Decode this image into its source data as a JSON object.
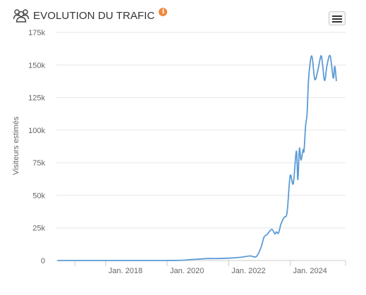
{
  "header": {
    "title": "EVOLUTION DU TRAFIC",
    "title_icon": "users-icon",
    "info_icon": "info-icon",
    "info_symbol": "i",
    "info_color": "#f0883e"
  },
  "menu": {
    "icon": "hamburger-menu-icon"
  },
  "chart_data": {
    "type": "line",
    "title": "EVOLUTION DU TRAFIC",
    "xlabel": "",
    "ylabel": "Visiteurs estimés",
    "x_range": [
      2016.4,
      2025.8
    ],
    "ylim": [
      0,
      175000
    ],
    "y_ticks": [
      0,
      25000,
      50000,
      75000,
      100000,
      125000,
      150000,
      175000
    ],
    "y_tick_labels": [
      "0",
      "25k",
      "50k",
      "75k",
      "100k",
      "125k",
      "150k",
      "175k"
    ],
    "x_ticks": [
      2017.0,
      2018.0,
      2020.0,
      2022.0,
      2024.0,
      2025.8
    ],
    "x_tick_labels": [
      "",
      "Jan. 2018",
      "Jan. 2020",
      "Jan. 2022",
      "Jan. 2024",
      ""
    ],
    "grid": true,
    "legend": "none",
    "line_color": "#5b9bd5",
    "series": [
      {
        "x": [
          2016.45,
          2017.0,
          2018.0,
          2019.0,
          2020.0,
          2020.5,
          2020.8,
          2021.0,
          2021.3,
          2021.6,
          2022.0,
          2022.4,
          2022.7,
          2022.9,
          2023.05,
          2023.15,
          2023.25,
          2023.4,
          2023.5,
          2023.55,
          2023.62,
          2023.7,
          2023.8,
          2023.9,
          2024.0,
          2024.1,
          2024.2,
          2024.25,
          2024.3,
          2024.35,
          2024.42,
          2024.45,
          2024.5,
          2024.55,
          2024.6,
          2024.7,
          2024.8,
          2024.9,
          2025.0,
          2025.05,
          2025.12,
          2025.2,
          2025.3,
          2025.4,
          2025.45,
          2025.5
        ],
        "y": [
          0,
          0,
          0,
          0,
          0,
          200,
          800,
          1000,
          1500,
          1500,
          1800,
          2500,
          3500,
          3000,
          10000,
          18000,
          20000,
          24000,
          20500,
          22000,
          21000,
          28000,
          33000,
          37000,
          65000,
          59000,
          84000,
          62000,
          86000,
          77000,
          85000,
          84000,
          103000,
          113000,
          140000,
          157000,
          139000,
          146000,
          157000,
          151000,
          138000,
          150000,
          157000,
          140000,
          149000,
          138000
        ]
      }
    ]
  }
}
